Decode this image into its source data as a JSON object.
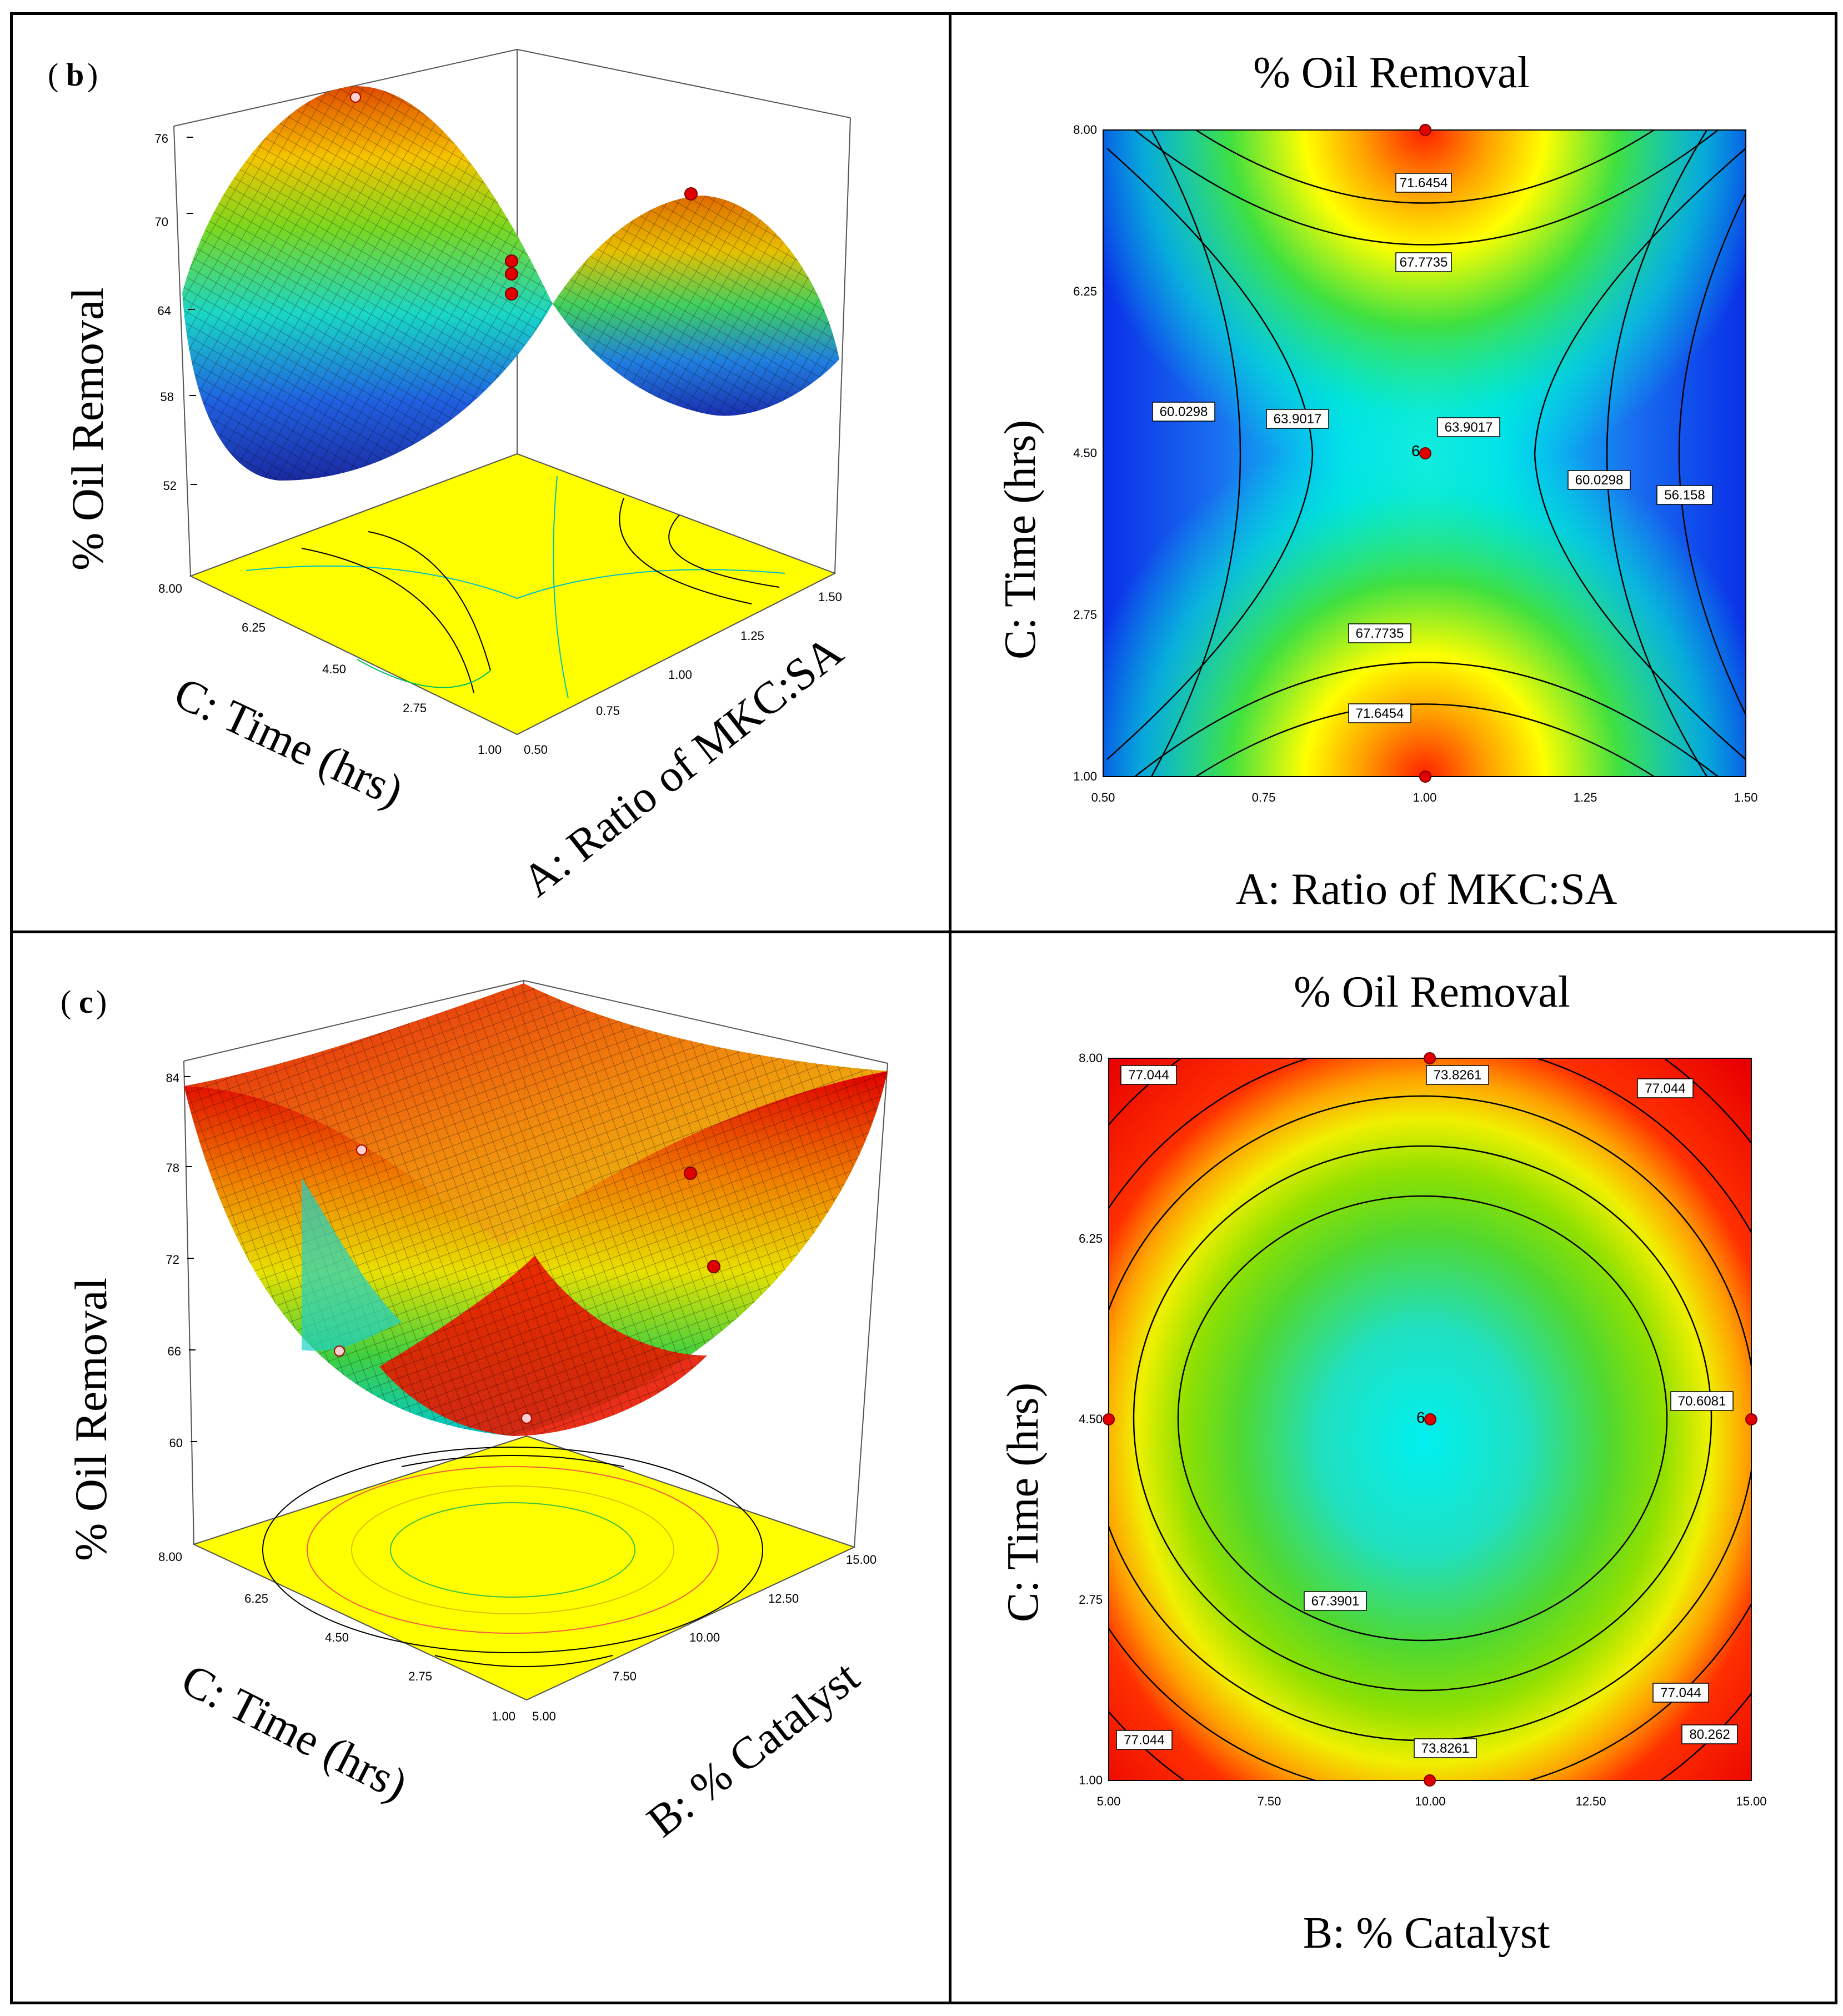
{
  "panels": [
    {
      "id": "b",
      "label_open": "(",
      "label_letter": "b",
      "label_close": ")",
      "surface_3d": {
        "zlabel": "% Oil Removal",
        "z_ticks": [
          "76",
          "70",
          "64",
          "58",
          "52"
        ],
        "left_axis_label": "C: Time (hrs)",
        "left_ticks": [
          "8.00",
          "6.25",
          "4.50",
          "2.75",
          "1.00"
        ],
        "right_axis_label": "A: Ratio of MKC:SA",
        "right_ticks": [
          "0.50",
          "0.75",
          "1.00",
          "1.25",
          "1.50"
        ]
      },
      "contour": {
        "title": "% Oil Removal",
        "xlabel": "A: Ratio of MKC:SA",
        "ylabel": "C: Time (hrs)",
        "x_ticks": [
          "0.50",
          "0.75",
          "1.00",
          "1.25",
          "1.50"
        ],
        "y_ticks": [
          "8.00",
          "6.25",
          "4.50",
          "2.75",
          "1.00"
        ],
        "center_count": "6",
        "contour_labels": [
          "71.6454",
          "67.7735",
          "60.0298",
          "63.9017",
          "63.9017",
          "60.0298",
          "56.158",
          "67.7735",
          "71.6454"
        ]
      }
    },
    {
      "id": "c",
      "label_open": "(",
      "label_letter": "c",
      "label_close": ")",
      "surface_3d": {
        "zlabel": "% Oil Removal",
        "z_ticks": [
          "84",
          "78",
          "72",
          "66",
          "60"
        ],
        "left_axis_label": "C: Time (hrs)",
        "left_ticks": [
          "8.00",
          "6.25",
          "4.50",
          "2.75",
          "1.00"
        ],
        "right_axis_label": "B: % Catalyst",
        "right_ticks": [
          "5.00",
          "7.50",
          "10.00",
          "12.50",
          "15.00"
        ]
      },
      "contour": {
        "title": "% Oil Removal",
        "xlabel": "B: % Catalyst",
        "ylabel": "C: Time (hrs)",
        "x_ticks": [
          "5.00",
          "7.50",
          "10.00",
          "12.50",
          "15.00"
        ],
        "y_ticks": [
          "8.00",
          "6.25",
          "4.50",
          "2.75",
          "1.00"
        ],
        "center_count": "6",
        "contour_labels": [
          "77.044",
          "73.8261",
          "77.044",
          "70.6081",
          "67.3901",
          "77.044",
          "80.262",
          "77.044",
          "73.8261"
        ]
      }
    }
  ],
  "chart_data": [
    {
      "type": "surface",
      "panel": "b",
      "title": "",
      "xlabel": "A: Ratio of MKC:SA",
      "ylabel": "C: Time (hrs)",
      "zlabel": "% Oil Removal",
      "xlim": [
        0.5,
        1.5
      ],
      "ylim": [
        1.0,
        8.0
      ],
      "zlim": [
        52,
        76
      ],
      "design_points": [
        {
          "x": 1.0,
          "y": 8.0,
          "z": 76
        },
        {
          "x": 1.0,
          "y": 1.0,
          "z": 73
        },
        {
          "x": 1.0,
          "y": 4.5,
          "z": 66
        },
        {
          "x": 1.0,
          "y": 4.5,
          "z": 65
        },
        {
          "x": 1.0,
          "y": 4.5,
          "z": 64
        }
      ]
    },
    {
      "type": "contour",
      "panel": "b",
      "title": "% Oil Removal",
      "xlabel": "A: Ratio of MKC:SA",
      "ylabel": "C: Time (hrs)",
      "xlim": [
        0.5,
        1.5
      ],
      "ylim": [
        1.0,
        8.0
      ],
      "levels": [
        56.158,
        60.0298,
        63.9017,
        67.7735,
        71.6454
      ],
      "design_points": [
        {
          "x": 1.0,
          "y": 8.0
        },
        {
          "x": 1.0,
          "y": 4.5,
          "count": 6
        },
        {
          "x": 1.0,
          "y": 1.0
        }
      ]
    },
    {
      "type": "surface",
      "panel": "c",
      "title": "",
      "xlabel": "B: % Catalyst",
      "ylabel": "C: Time (hrs)",
      "zlabel": "% Oil Removal",
      "xlim": [
        5.0,
        15.0
      ],
      "ylim": [
        1.0,
        8.0
      ],
      "zlim": [
        60,
        84
      ],
      "design_points": [
        {
          "x": 10.0,
          "y": 8.0,
          "z": 78
        },
        {
          "x": 15.0,
          "y": 4.5,
          "z": 78
        },
        {
          "x": 10.0,
          "y": 1.0,
          "z": 74
        },
        {
          "x": 5.0,
          "y": 4.5,
          "z": 67
        }
      ]
    },
    {
      "type": "contour",
      "panel": "c",
      "title": "% Oil Removal",
      "xlabel": "B: % Catalyst",
      "ylabel": "C: Time (hrs)",
      "xlim": [
        5.0,
        15.0
      ],
      "ylim": [
        1.0,
        8.0
      ],
      "levels": [
        67.3901,
        70.6081,
        73.8261,
        77.044,
        80.262
      ],
      "design_points": [
        {
          "x": 10.0,
          "y": 8.0
        },
        {
          "x": 5.0,
          "y": 4.5
        },
        {
          "x": 15.0,
          "y": 4.5
        },
        {
          "x": 10.0,
          "y": 4.5,
          "count": 6
        },
        {
          "x": 10.0,
          "y": 1.0
        }
      ]
    }
  ]
}
